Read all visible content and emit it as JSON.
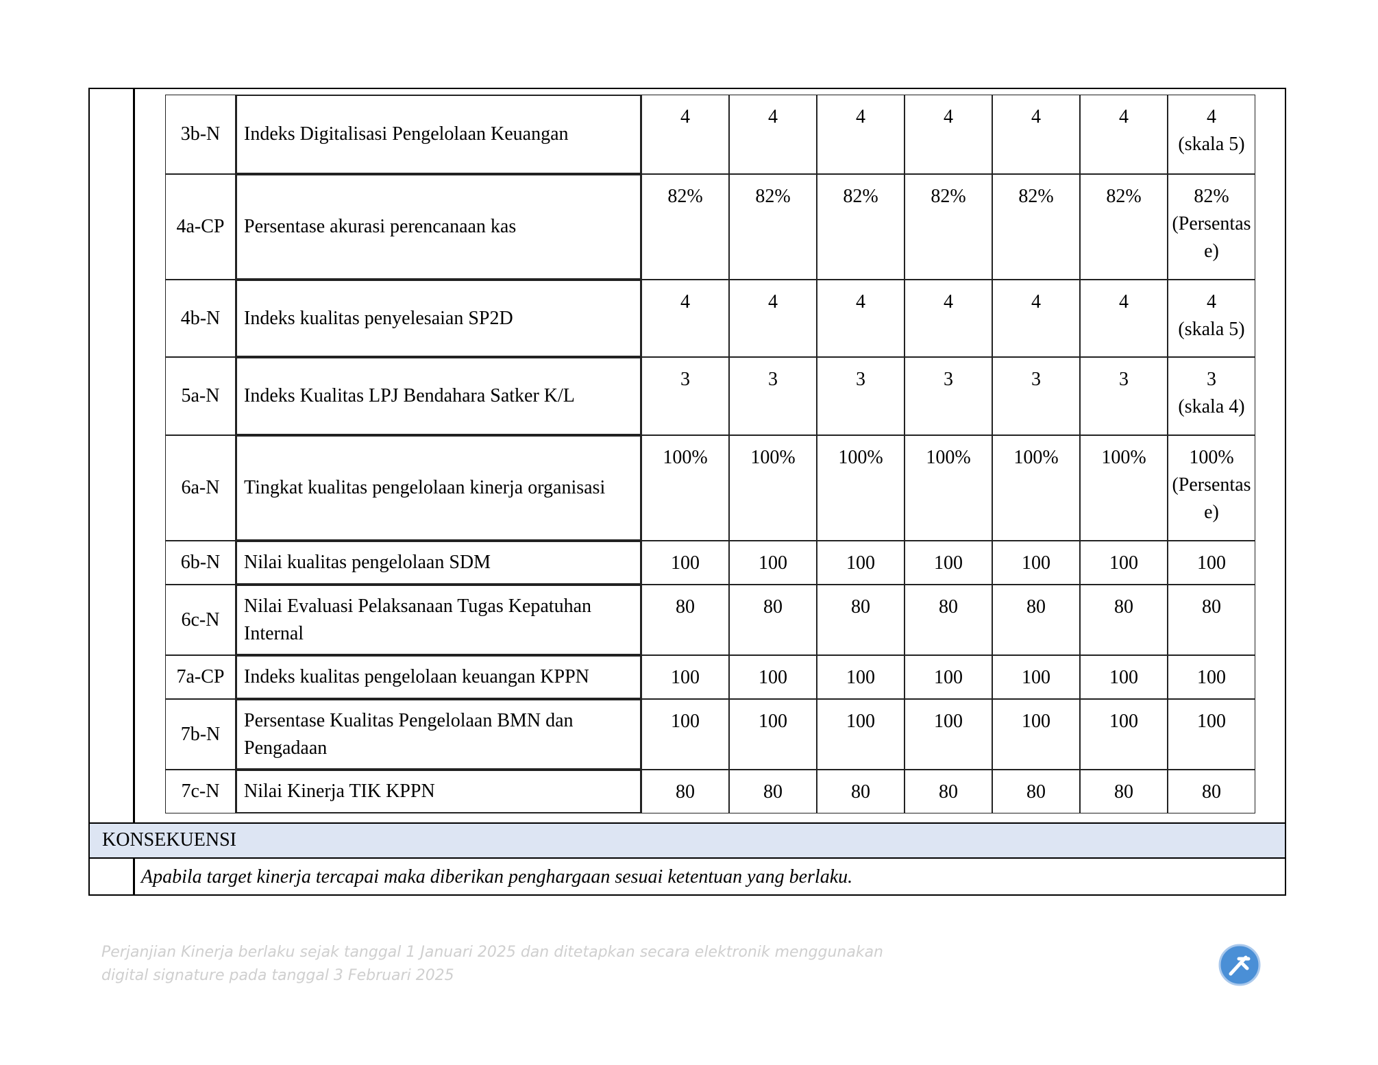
{
  "table": {
    "rows": [
      {
        "code": "3b-N",
        "indicator": "Indeks Digitalisasi Pengelolaan Keuangan",
        "targets": [
          "4",
          "4",
          "4",
          "4",
          "4",
          "4",
          "4"
        ],
        "unit": "(skala 5)"
      },
      {
        "code": "4a-CP",
        "indicator": "Persentase akurasi perencanaan kas",
        "targets": [
          "82%",
          "82%",
          "82%",
          "82%",
          "82%",
          "82%",
          "82%"
        ],
        "unit": "(Persentase)"
      },
      {
        "code": "4b-N",
        "indicator": "Indeks kualitas penyelesaian SP2D",
        "targets": [
          "4",
          "4",
          "4",
          "4",
          "4",
          "4",
          "4"
        ],
        "unit": "(skala 5)"
      },
      {
        "code": "5a-N",
        "indicator": "Indeks Kualitas LPJ Bendahara Satker K/L",
        "targets": [
          "3",
          "3",
          "3",
          "3",
          "3",
          "3",
          "3"
        ],
        "unit": "(skala 4)"
      },
      {
        "code": "6a-N",
        "indicator": "Tingkat kualitas pengelolaan kinerja organisasi",
        "targets": [
          "100%",
          "100%",
          "100%",
          "100%",
          "100%",
          "100%",
          "100%"
        ],
        "unit": "(Persentase)"
      },
      {
        "code": "6b-N",
        "indicator": "Nilai kualitas pengelolaan SDM",
        "targets": [
          "100",
          "100",
          "100",
          "100",
          "100",
          "100",
          "100"
        ]
      },
      {
        "code": "6c-N",
        "indicator": "Nilai Evaluasi Pelaksanaan Tugas Kepatuhan Internal",
        "targets": [
          "80",
          "80",
          "80",
          "80",
          "80",
          "80",
          "80"
        ]
      },
      {
        "code": "7a-CP",
        "indicator": "Indeks kualitas pengelolaan keuangan KPPN",
        "targets": [
          "100",
          "100",
          "100",
          "100",
          "100",
          "100",
          "100"
        ]
      },
      {
        "code": "7b-N",
        "indicator": "Persentase Kualitas Pengelolaan BMN dan Pengadaan",
        "targets": [
          "100",
          "100",
          "100",
          "100",
          "100",
          "100",
          "100"
        ]
      },
      {
        "code": "7c-N",
        "indicator": "Nilai Kinerja TIK KPPN",
        "targets": [
          "80",
          "80",
          "80",
          "80",
          "80",
          "80",
          "80"
        ]
      }
    ]
  },
  "consequence": {
    "heading": "KONSEKUENSI",
    "text": "Apabila target kinerja tercapai maka diberikan penghargaan sesuai ketentuan yang berlaku."
  },
  "footer": {
    "lines": [
      "Perjanjian Kinerja berlaku sejak tanggal 1 Januari 2025 dan ditetapkan secara elektronik menggunakan",
      "digital signature pada tanggal  3 Februari 2025"
    ]
  }
}
